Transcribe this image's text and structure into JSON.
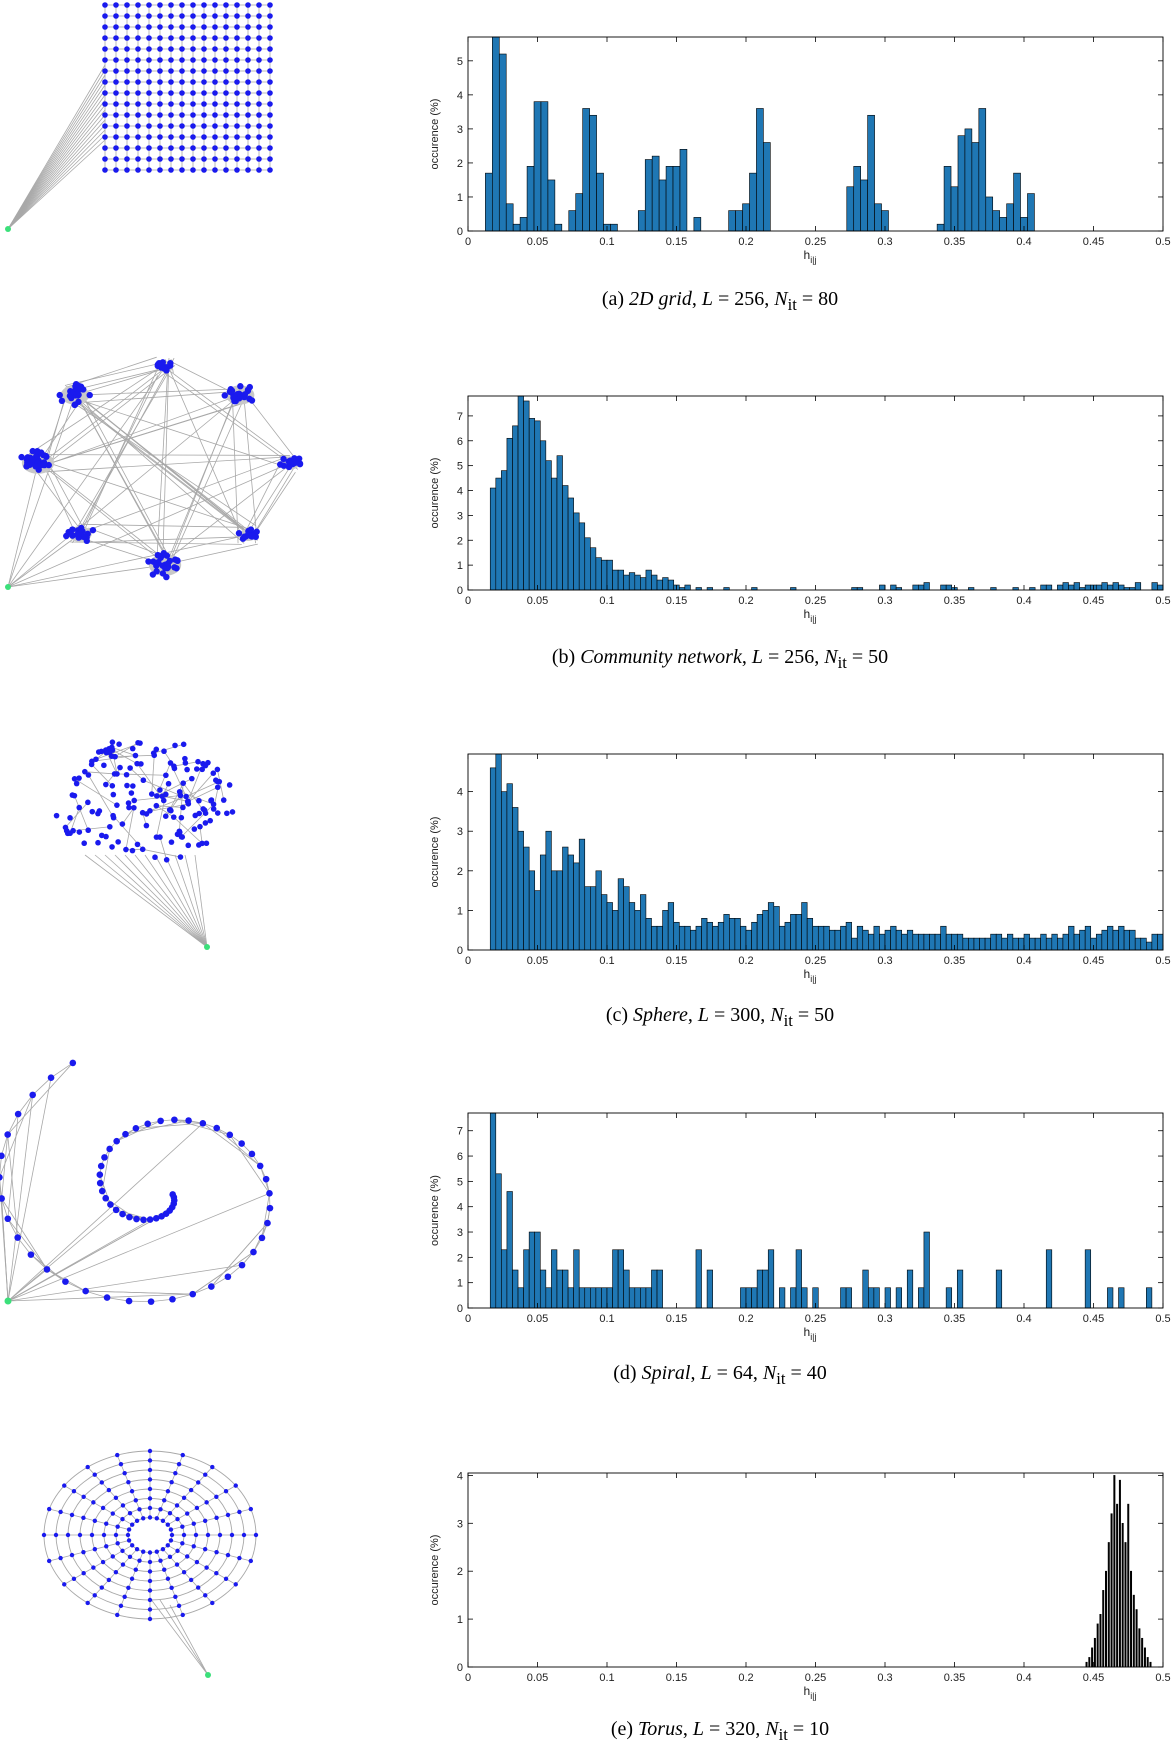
{
  "panels": [
    {
      "caption": {
        "label": "(a)",
        "name": "2D grid",
        "L": "256",
        "N": "80"
      },
      "network": {
        "type": "grid"
      },
      "chart_data": {
        "type": "bar",
        "xlabel": "h_{i|j}",
        "ylabel": "occurence (%)",
        "xlim": [
          0,
          0.5
        ],
        "ylim": [
          0,
          5.7
        ],
        "xticks": [
          "0",
          "0.05",
          "0.1",
          "0.15",
          "0.2",
          "0.25",
          "0.3",
          "0.35",
          "0.4",
          "0.45",
          "0.5"
        ],
        "yticks": [
          "0",
          "1",
          "2",
          "3",
          "4",
          "5"
        ],
        "bin_width": 0.005,
        "bar_color": "#1f77b4",
        "x": [
          0.015,
          0.02,
          0.025,
          0.03,
          0.035,
          0.04,
          0.045,
          0.05,
          0.055,
          0.06,
          0.065,
          0.075,
          0.08,
          0.085,
          0.09,
          0.095,
          0.1,
          0.105,
          0.125,
          0.13,
          0.135,
          0.14,
          0.145,
          0.15,
          0.155,
          0.165,
          0.19,
          0.195,
          0.2,
          0.205,
          0.21,
          0.215,
          0.275,
          0.28,
          0.285,
          0.29,
          0.295,
          0.3,
          0.34,
          0.345,
          0.35,
          0.355,
          0.36,
          0.365,
          0.37,
          0.375,
          0.38,
          0.385,
          0.39,
          0.395,
          0.4,
          0.405
        ],
        "values": [
          1.7,
          5.7,
          5.2,
          0.8,
          0.2,
          0.4,
          1.9,
          3.8,
          3.8,
          1.5,
          0.2,
          0.6,
          1.1,
          3.6,
          3.4,
          1.7,
          0.2,
          0.2,
          0.6,
          2.1,
          2.2,
          1.5,
          1.9,
          1.9,
          2.4,
          0.4,
          0.6,
          0.6,
          0.8,
          1.7,
          3.6,
          2.6,
          1.3,
          1.9,
          1.5,
          3.4,
          0.8,
          0.6,
          0.2,
          1.9,
          1.3,
          2.8,
          3.0,
          2.6,
          3.6,
          1.0,
          0.6,
          0.4,
          0.8,
          1.7,
          0.4,
          1.1
        ]
      }
    },
    {
      "caption": {
        "label": "(b)",
        "name": "Community network",
        "L": "256",
        "N": "50"
      },
      "network": {
        "type": "community"
      },
      "chart_data": {
        "type": "bar",
        "xlabel": "h_{i|j}",
        "ylabel": "occurence (%)",
        "xlim": [
          0,
          0.5
        ],
        "ylim": [
          0,
          7.8
        ],
        "xticks": [
          "0",
          "0.05",
          "0.1",
          "0.15",
          "0.2",
          "0.25",
          "0.3",
          "0.35",
          "0.4",
          "0.45",
          "0.5"
        ],
        "yticks": [
          "0",
          "1",
          "2",
          "3",
          "4",
          "5",
          "6",
          "7"
        ],
        "bin_width": 0.004,
        "bar_color": "#1f77b4",
        "x": [
          0.018,
          0.022,
          0.026,
          0.03,
          0.034,
          0.038,
          0.042,
          0.046,
          0.05,
          0.054,
          0.058,
          0.062,
          0.066,
          0.07,
          0.074,
          0.078,
          0.082,
          0.086,
          0.09,
          0.094,
          0.098,
          0.102,
          0.106,
          0.11,
          0.114,
          0.118,
          0.122,
          0.126,
          0.13,
          0.134,
          0.138,
          0.142,
          0.146,
          0.15,
          0.154,
          0.158,
          0.166,
          0.174,
          0.186,
          0.206,
          0.234,
          0.278,
          0.282,
          0.298,
          0.306,
          0.31,
          0.322,
          0.326,
          0.33,
          0.342,
          0.346,
          0.35,
          0.362,
          0.378,
          0.394,
          0.406,
          0.414,
          0.418,
          0.426,
          0.43,
          0.434,
          0.438,
          0.442,
          0.446,
          0.45,
          0.454,
          0.458,
          0.462,
          0.466,
          0.47,
          0.474,
          0.478,
          0.482,
          0.494,
          0.498
        ],
        "values": [
          4.1,
          4.5,
          4.8,
          6.1,
          6.6,
          7.8,
          7.6,
          6.9,
          6.8,
          6.0,
          5.2,
          4.5,
          5.4,
          4.2,
          3.7,
          3.1,
          2.7,
          2.1,
          1.7,
          1.3,
          1.2,
          1.2,
          0.8,
          0.8,
          0.6,
          0.7,
          0.6,
          0.5,
          0.8,
          0.6,
          0.4,
          0.5,
          0.4,
          0.2,
          0.1,
          0.2,
          0.1,
          0.1,
          0.1,
          0.1,
          0.1,
          0.1,
          0.1,
          0.2,
          0.2,
          0.1,
          0.2,
          0.2,
          0.3,
          0.2,
          0.2,
          0.1,
          0.1,
          0.1,
          0.1,
          0.1,
          0.2,
          0.2,
          0.2,
          0.3,
          0.2,
          0.3,
          0.1,
          0.2,
          0.2,
          0.2,
          0.3,
          0.2,
          0.3,
          0.2,
          0.1,
          0.1,
          0.3,
          0.3,
          0.2
        ]
      }
    },
    {
      "caption": {
        "label": "(c)",
        "name": "Sphere",
        "L": "300",
        "N": "50"
      },
      "network": {
        "type": "sphere"
      },
      "chart_data": {
        "type": "bar",
        "xlabel": "h_{i|j}",
        "ylabel": "occurence (%)",
        "xlim": [
          0,
          0.5
        ],
        "ylim": [
          0,
          4.95
        ],
        "xticks": [
          "0",
          "0.05",
          "0.1",
          "0.15",
          "0.2",
          "0.25",
          "0.3",
          "0.35",
          "0.4",
          "0.45",
          "0.5"
        ],
        "yticks": [
          "0",
          "1",
          "2",
          "3",
          "4"
        ],
        "bin_width": 0.004,
        "bar_color": "#1f77b4",
        "x": [
          0.018,
          0.022,
          0.026,
          0.03,
          0.034,
          0.038,
          0.042,
          0.046,
          0.05,
          0.054,
          0.058,
          0.062,
          0.066,
          0.07,
          0.074,
          0.078,
          0.082,
          0.086,
          0.09,
          0.094,
          0.098,
          0.102,
          0.106,
          0.11,
          0.114,
          0.118,
          0.122,
          0.126,
          0.13,
          0.134,
          0.138,
          0.142,
          0.146,
          0.15,
          0.154,
          0.158,
          0.162,
          0.166,
          0.17,
          0.174,
          0.178,
          0.182,
          0.186,
          0.19,
          0.194,
          0.198,
          0.202,
          0.206,
          0.21,
          0.214,
          0.218,
          0.222,
          0.226,
          0.23,
          0.234,
          0.238,
          0.242,
          0.246,
          0.25,
          0.254,
          0.258,
          0.262,
          0.266,
          0.27,
          0.274,
          0.278,
          0.282,
          0.286,
          0.29,
          0.294,
          0.298,
          0.302,
          0.306,
          0.31,
          0.314,
          0.318,
          0.322,
          0.326,
          0.33,
          0.334,
          0.338,
          0.342,
          0.346,
          0.35,
          0.354,
          0.358,
          0.362,
          0.366,
          0.37,
          0.374,
          0.378,
          0.382,
          0.386,
          0.39,
          0.394,
          0.398,
          0.402,
          0.406,
          0.41,
          0.414,
          0.418,
          0.422,
          0.426,
          0.43,
          0.434,
          0.438,
          0.442,
          0.446,
          0.45,
          0.454,
          0.458,
          0.462,
          0.466,
          0.47,
          0.474,
          0.478,
          0.482,
          0.486,
          0.49,
          0.494,
          0.498
        ],
        "values": [
          4.6,
          4.95,
          4.0,
          4.2,
          3.6,
          3.0,
          2.6,
          2.0,
          1.5,
          2.4,
          3.0,
          2.0,
          2.0,
          2.6,
          2.4,
          2.2,
          2.8,
          1.6,
          1.6,
          2.0,
          1.4,
          1.2,
          1.0,
          1.8,
          1.6,
          1.2,
          1.0,
          1.4,
          0.8,
          0.6,
          0.6,
          1.0,
          1.2,
          0.7,
          0.6,
          0.6,
          0.5,
          0.6,
          0.8,
          0.7,
          0.6,
          0.7,
          0.9,
          0.8,
          0.8,
          0.6,
          0.5,
          0.7,
          0.9,
          1.0,
          1.2,
          1.1,
          0.6,
          0.7,
          0.9,
          0.9,
          1.2,
          0.8,
          0.6,
          0.6,
          0.6,
          0.5,
          0.5,
          0.6,
          0.7,
          0.3,
          0.6,
          0.5,
          0.4,
          0.6,
          0.4,
          0.5,
          0.6,
          0.5,
          0.4,
          0.5,
          0.4,
          0.4,
          0.4,
          0.4,
          0.4,
          0.6,
          0.4,
          0.4,
          0.4,
          0.3,
          0.3,
          0.3,
          0.3,
          0.3,
          0.4,
          0.4,
          0.3,
          0.4,
          0.3,
          0.3,
          0.4,
          0.3,
          0.3,
          0.4,
          0.3,
          0.4,
          0.3,
          0.4,
          0.6,
          0.4,
          0.5,
          0.6,
          0.3,
          0.4,
          0.5,
          0.6,
          0.5,
          0.6,
          0.5,
          0.5,
          0.3,
          0.3,
          0.2,
          0.4,
          0.4
        ]
      }
    },
    {
      "caption": {
        "label": "(d)",
        "name": "Spiral",
        "L": "64",
        "N": "40"
      },
      "network": {
        "type": "spiral"
      },
      "chart_data": {
        "type": "bar",
        "xlabel": "h_{i|j}",
        "ylabel": "occurence (%)",
        "xlim": [
          0,
          0.5
        ],
        "ylim": [
          0,
          7.7
        ],
        "xticks": [
          "0",
          "0.05",
          "0.1",
          "0.15",
          "0.2",
          "0.25",
          "0.3",
          "0.35",
          "0.4",
          "0.45",
          "0.5"
        ],
        "yticks": [
          "0",
          "1",
          "2",
          "3",
          "4",
          "5",
          "6",
          "7"
        ],
        "bin_width": 0.004,
        "bar_color": "#1f77b4",
        "x": [
          0.018,
          0.022,
          0.026,
          0.03,
          0.034,
          0.038,
          0.042,
          0.046,
          0.05,
          0.054,
          0.058,
          0.062,
          0.066,
          0.07,
          0.074,
          0.078,
          0.082,
          0.086,
          0.09,
          0.094,
          0.098,
          0.102,
          0.106,
          0.11,
          0.114,
          0.118,
          0.122,
          0.126,
          0.13,
          0.134,
          0.138,
          0.142,
          0.146,
          0.15,
          0.154,
          0.158,
          0.162,
          0.166,
          0.17,
          0.174,
          0.178,
          0.182,
          0.186,
          0.19,
          0.194,
          0.198,
          0.202,
          0.206,
          0.21,
          0.214,
          0.218,
          0.222,
          0.226,
          0.23,
          0.234,
          0.238,
          0.242,
          0.246,
          0.25,
          0.254,
          0.27,
          0.274,
          0.278,
          0.282,
          0.286,
          0.29,
          0.294,
          0.298,
          0.302,
          0.306,
          0.31,
          0.314,
          0.318,
          0.322,
          0.326,
          0.33,
          0.334,
          0.338,
          0.342,
          0.346,
          0.35,
          0.354,
          0.358,
          0.362,
          0.366,
          0.37,
          0.374,
          0.378,
          0.382,
          0.386,
          0.39,
          0.394,
          0.398,
          0.402,
          0.406,
          0.41,
          0.414,
          0.418,
          0.422,
          0.426,
          0.43,
          0.434,
          0.438,
          0.442,
          0.446,
          0.45,
          0.454,
          0.458,
          0.462,
          0.466,
          0.47,
          0.474,
          0.478,
          0.482,
          0.486,
          0.49
        ],
        "values": [
          7.7,
          5.3,
          2.3,
          4.6,
          1.5,
          0.8,
          2.3,
          3.0,
          3.0,
          1.5,
          0.8,
          2.3,
          1.5,
          1.5,
          0.8,
          2.3,
          0.8,
          0.8,
          0.8,
          0.8,
          0.8,
          0.8,
          2.3,
          2.3,
          1.5,
          0.8,
          0.8,
          0.8,
          0.8,
          1.5,
          1.5,
          0,
          0,
          0,
          0,
          0,
          0,
          2.3,
          0,
          1.5,
          0,
          0,
          0,
          0,
          0,
          0.8,
          0.8,
          0.8,
          1.5,
          1.5,
          2.3,
          0,
          0.8,
          0,
          0.8,
          2.3,
          0.8,
          0,
          0.8,
          0,
          0.8,
          0.8,
          0,
          0,
          1.5,
          0.8,
          0.8,
          0,
          0.8,
          0,
          0.8,
          0,
          1.5,
          0,
          0.8,
          3.0,
          0,
          0,
          0,
          0.8,
          0,
          1.5,
          0,
          0,
          0,
          0,
          0,
          0,
          1.5,
          0,
          0,
          0,
          0,
          0,
          0,
          0,
          0,
          2.3,
          0,
          0,
          0,
          0,
          0,
          0,
          2.3,
          0,
          0,
          0,
          0.8,
          0,
          0.8,
          0,
          0,
          0,
          0,
          0.8
        ]
      }
    },
    {
      "caption": {
        "label": "(e)",
        "name": "Torus",
        "L": "320",
        "N": "10"
      },
      "network": {
        "type": "torus"
      },
      "chart_data": {
        "type": "bar",
        "xlabel": "h_{i|j}",
        "ylabel": "occurence (%)",
        "xlim": [
          0,
          0.5
        ],
        "ylim": [
          0,
          4.05
        ],
        "xticks": [
          "0",
          "0.05",
          "0.1",
          "0.15",
          "0.2",
          "0.25",
          "0.3",
          "0.35",
          "0.4",
          "0.45",
          "0.5"
        ],
        "yticks": [
          "0",
          "1",
          "2",
          "3",
          "4"
        ],
        "bin_width": 0.001,
        "bar_color": "#000000",
        "x": [
          0.445,
          0.447,
          0.449,
          0.451,
          0.453,
          0.455,
          0.457,
          0.459,
          0.461,
          0.463,
          0.465,
          0.467,
          0.469,
          0.471,
          0.473,
          0.475,
          0.477,
          0.479,
          0.481,
          0.483,
          0.485,
          0.487,
          0.489,
          0.491
        ],
        "values": [
          0.1,
          0.2,
          0.4,
          0.6,
          0.9,
          1.1,
          1.6,
          2.0,
          2.6,
          3.2,
          4.0,
          3.4,
          3.9,
          3.0,
          2.6,
          3.4,
          2.0,
          1.5,
          1.2,
          0.8,
          0.6,
          0.4,
          0.2,
          0.1
        ]
      }
    }
  ]
}
